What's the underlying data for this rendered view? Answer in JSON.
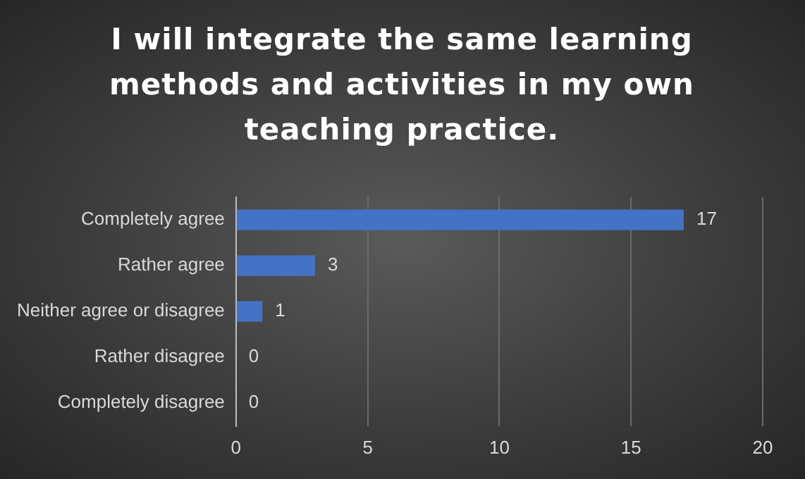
{
  "chart_data": {
    "type": "bar",
    "orientation": "horizontal",
    "title": "I will integrate the same learning methods and activities in my own teaching practice.",
    "categories": [
      "Completely agree",
      "Rather agree",
      "Neither agree or disagree",
      "Rather disagree",
      "Completely disagree"
    ],
    "values": [
      17,
      3,
      1,
      0,
      0
    ],
    "color": "#4472c4",
    "xlim": [
      0,
      20
    ],
    "xticks": [
      0,
      5,
      10,
      15,
      20
    ],
    "grid": "x",
    "data_labels": true,
    "legend": false
  }
}
